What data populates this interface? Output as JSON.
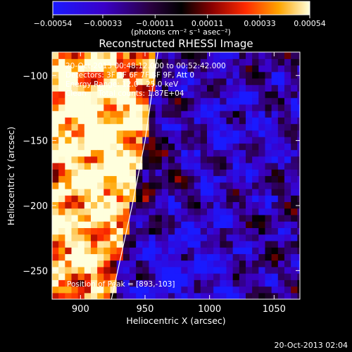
{
  "chart_data": {
    "type": "heatmap",
    "title": "Reconstructed RHESSI Image",
    "xlabel": "Heliocentric X (arcsec)",
    "ylabel": "Heliocentric Y (arcsec)",
    "xlim": [
      878,
      1070
    ],
    "ylim": [
      -272,
      -82
    ],
    "xticks": [
      900,
      950,
      1000,
      1050
    ],
    "xtick_labels": [
      "900",
      "950",
      "1000",
      "1050"
    ],
    "yticks": [
      -100,
      -150,
      -200,
      -250
    ],
    "ytick_labels": [
      "−100",
      "−150",
      "−200",
      "−250"
    ],
    "colorbar": {
      "range": [
        -0.00054,
        0.00054
      ],
      "ticks": [
        -0.00054,
        -0.00033,
        -0.00011,
        0.00011,
        0.00033,
        0.00054
      ],
      "tick_labels": [
        "−0.00054",
        "−0.00033",
        "−0.00011",
        "0.00011",
        "0.00033",
        "0.00054"
      ],
      "units_label": "(photons cm⁻² s⁻¹ asec⁻²)",
      "placement": "top"
    },
    "annotations": {
      "time_range": "20-Oct-2013 00:48:12.000 to 00:52:42.000",
      "detectors": "Detectors: 3F 5F 6F 7F 8F 9F, Att 0",
      "energy_range": "Energy Range: 12.0 - 25.0 keV",
      "algorithm": "Clean     Total counts: 1.87E+04",
      "peak": "Position of Peak = [893,-103]"
    },
    "limb_curve": [
      [
        960,
        -82
      ],
      [
        950,
        -150
      ],
      [
        940,
        -200
      ],
      [
        924,
        -272
      ]
    ],
    "peak_position": [
      893,
      -103
    ],
    "color_regions": [
      {
        "name": "bright-west",
        "value": 0.00045,
        "x": 905,
        "y": -120
      },
      {
        "name": "bright-band",
        "value": 0.00038,
        "x": 925,
        "y": -170
      },
      {
        "name": "bright-south",
        "value": 0.0003,
        "x": 895,
        "y": -230
      },
      {
        "name": "dim-east",
        "value": -0.00025,
        "x": 1010,
        "y": -140
      },
      {
        "name": "dim-southeast",
        "value": -0.0004,
        "x": 975,
        "y": -250
      }
    ],
    "grid": false
  },
  "footer": {
    "timestamp": "20-Oct-2013 02:04"
  }
}
